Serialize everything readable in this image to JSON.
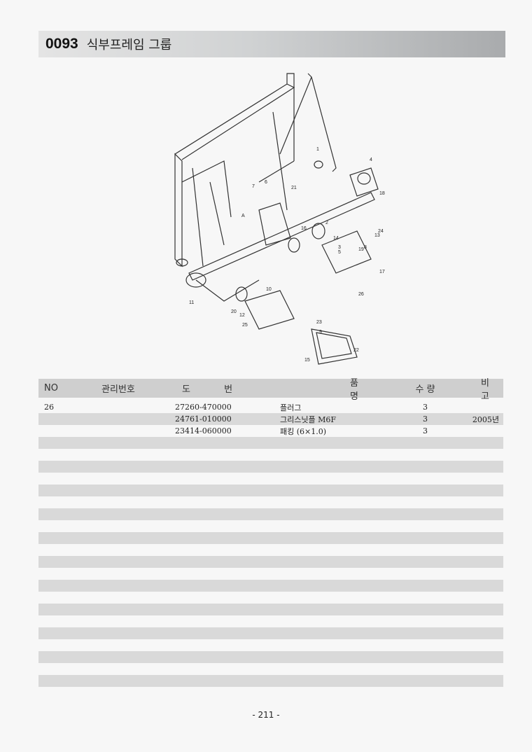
{
  "header": {
    "code": "0093",
    "title": "식부프레임 그룹"
  },
  "diagram": {
    "callouts": [
      "1",
      "4",
      "18",
      "7",
      "6",
      "21",
      "2",
      "16",
      "13",
      "24",
      "3",
      "5",
      "19",
      "8",
      "14",
      "10",
      "9",
      "20",
      "12",
      "11",
      "25",
      "17",
      "26",
      "15",
      "22",
      "23",
      "A"
    ]
  },
  "table": {
    "columns": [
      "NO",
      "관리번호",
      "도 번",
      "품 명",
      "수 량",
      "비 고"
    ],
    "rows": [
      {
        "no": "26",
        "mgmt": "",
        "drawing": "27260-470000",
        "name": "플러그",
        "qty": "3",
        "note": ""
      },
      {
        "no": "",
        "mgmt": "",
        "drawing": "24761-010000",
        "name": "그리스닛플 M6F",
        "qty": "3",
        "note": "2005년"
      },
      {
        "no": "",
        "mgmt": "",
        "drawing": "23414-060000",
        "name": "패킹 (6×1.0)",
        "qty": "3",
        "note": ""
      }
    ]
  },
  "footer": {
    "page": "- 211 -"
  }
}
